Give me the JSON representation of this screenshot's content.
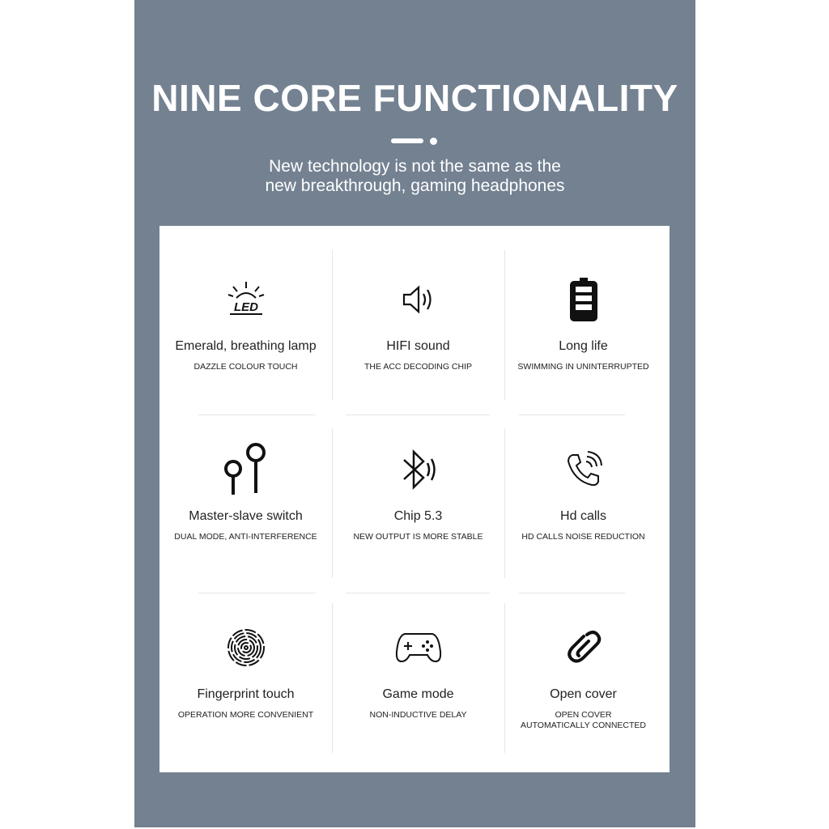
{
  "header": {
    "title": "NINE CORE FUNCTIONALITY",
    "subtitle_line1": "New technology is not the same as the",
    "subtitle_line2": "new breakthrough, gaming headphones"
  },
  "features": [
    {
      "icon": "led-icon",
      "title": "Emerald, breathing lamp",
      "subtitle": "DAZZLE COLOUR TOUCH",
      "icon_text": "LED"
    },
    {
      "icon": "speaker-icon",
      "title": "HIFI sound",
      "subtitle": "THE ACC DECODING CHIP"
    },
    {
      "icon": "battery-icon",
      "title": "Long life",
      "subtitle": "SWIMMING IN UNINTERRUPTED"
    },
    {
      "icon": "earbuds-icon",
      "title": "Master-slave switch",
      "subtitle": "DUAL MODE, ANTI-INTERFERENCE"
    },
    {
      "icon": "bluetooth-icon",
      "title": "Chip 5.3",
      "subtitle": "NEW OUTPUT IS MORE STABLE"
    },
    {
      "icon": "phone-call-icon",
      "title": "Hd calls",
      "subtitle": "HD CALLS NOISE REDUCTION"
    },
    {
      "icon": "fingerprint-icon",
      "title": "Fingerprint touch",
      "subtitle": "OPERATION MORE CONVENIENT"
    },
    {
      "icon": "gamepad-icon",
      "title": "Game mode",
      "subtitle": "NON-INDUCTIVE DELAY"
    },
    {
      "icon": "link-icon",
      "title": "Open cover",
      "subtitle": "OPEN COVER\nAUTOMATICALLY CONNECTED"
    }
  ],
  "colors": {
    "background": "#738191",
    "card": "#ffffff",
    "text": "#222222"
  }
}
